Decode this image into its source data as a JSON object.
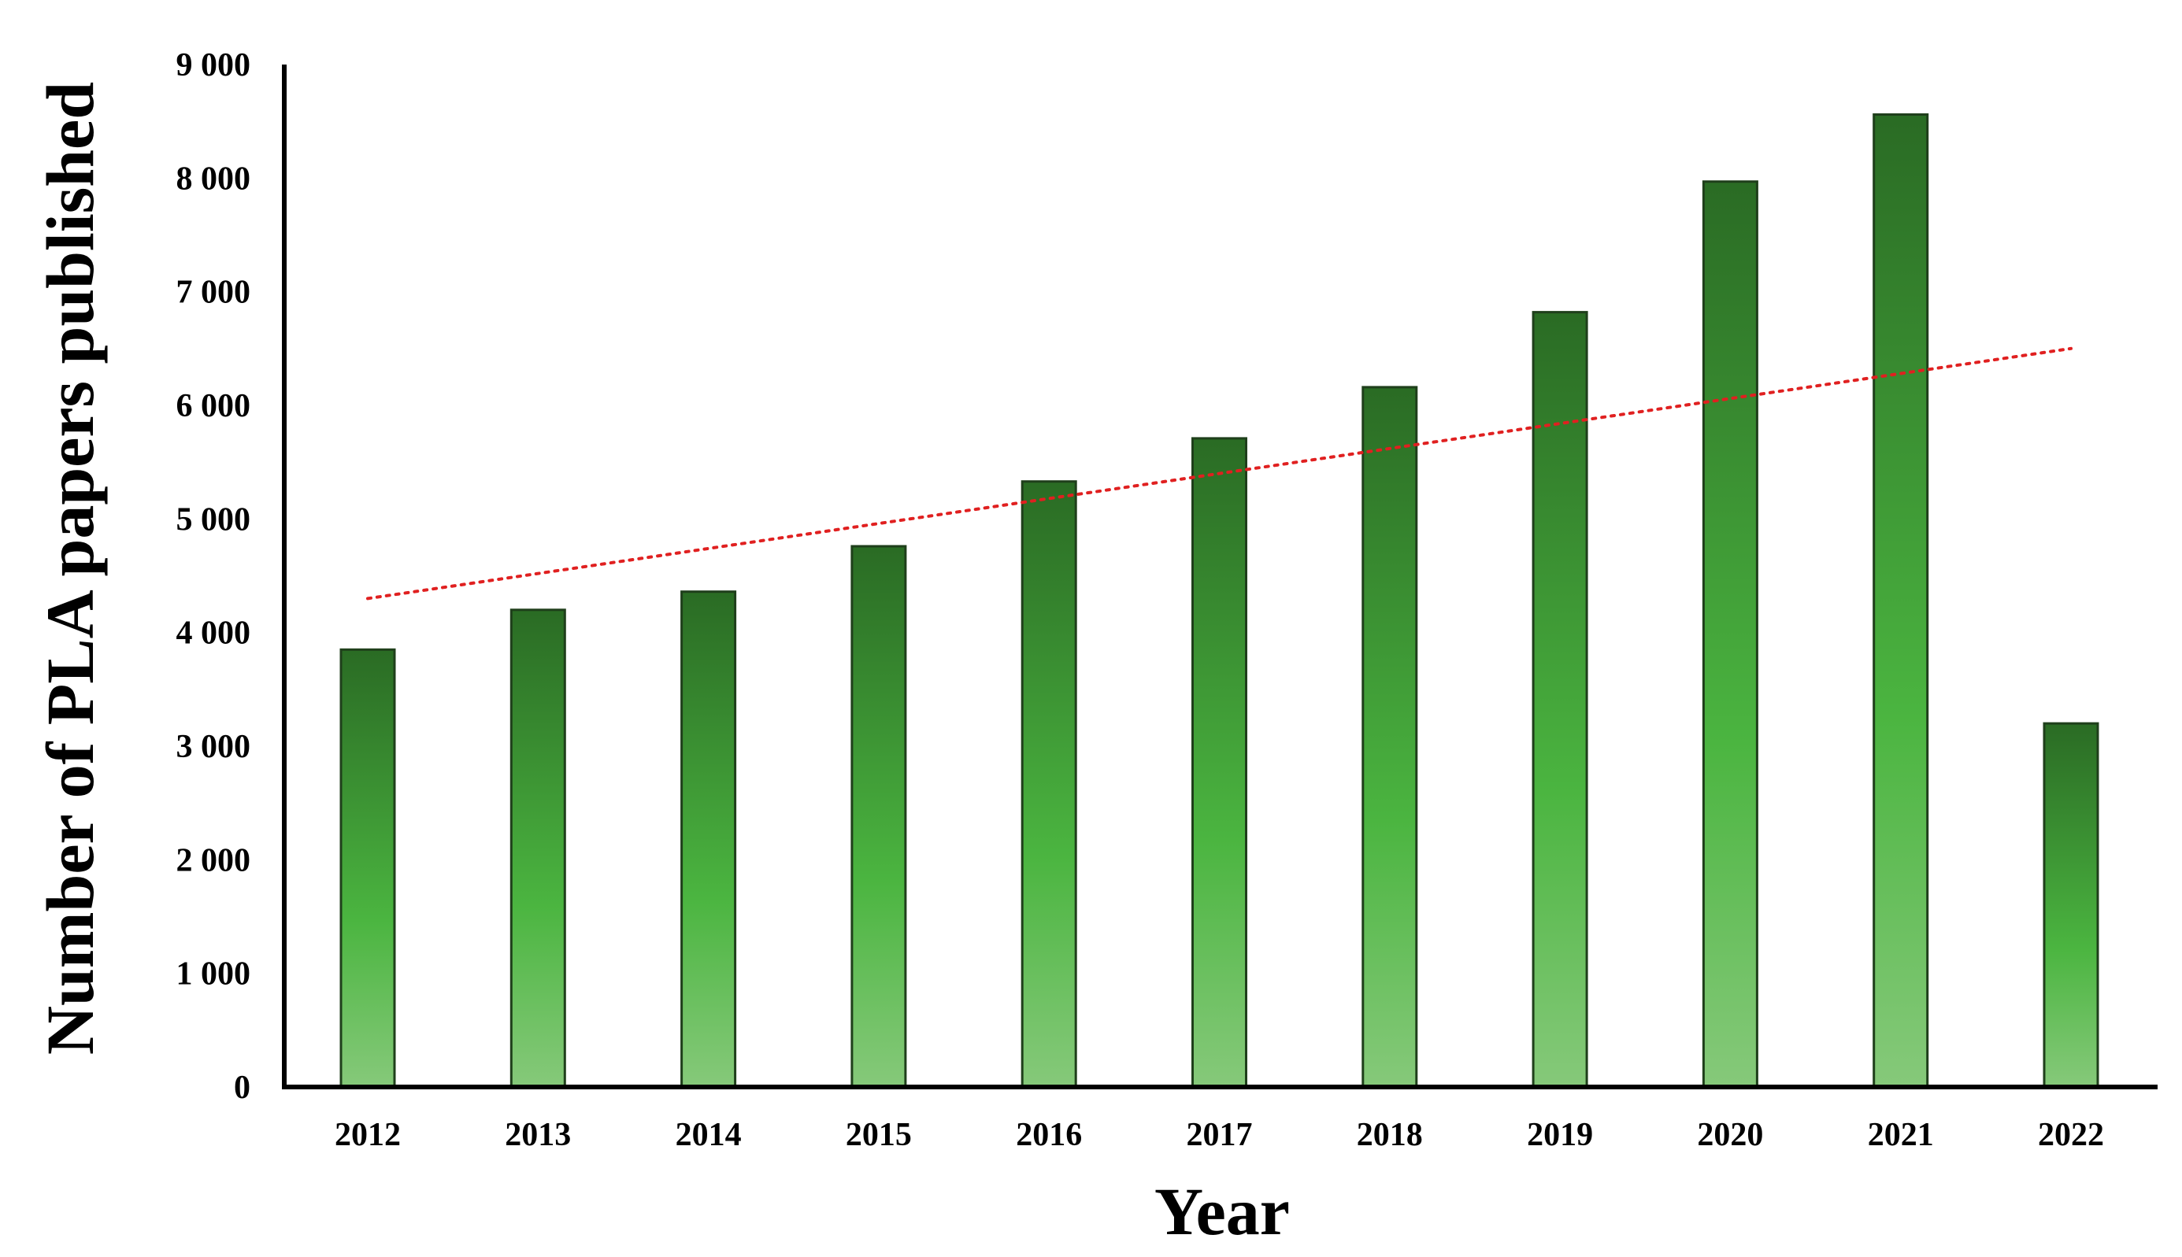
{
  "chart_data": {
    "type": "bar",
    "xlabel": "Year",
    "ylabel": "Number of PLA papers published",
    "categories": [
      "2012",
      "2013",
      "2014",
      "2015",
      "2016",
      "2017",
      "2018",
      "2019",
      "2020",
      "2021",
      "2022"
    ],
    "values": [
      3850,
      4200,
      4360,
      4760,
      5330,
      5710,
      6160,
      6820,
      7970,
      8560,
      3200
    ],
    "ylim": [
      0,
      9000
    ],
    "y_ticks": [
      0,
      1000,
      2000,
      3000,
      4000,
      5000,
      6000,
      7000,
      8000,
      9000
    ],
    "y_tick_labels": [
      "0",
      "1 000",
      "2 000",
      "3 000",
      "4 000",
      "5 000",
      "6 000",
      "7 000",
      "8 000",
      "9 000"
    ],
    "trendline": {
      "type": "linear",
      "start": 4300,
      "end": 6500
    },
    "grid": false,
    "legend": "none",
    "colors": {
      "bar_top": "#2a6b24",
      "bar_mid": "#4bb540",
      "bar_bottom": "#86c97a",
      "bar_stroke": "#1f3f1b",
      "trendline": "#e02020",
      "axis": "#000000"
    }
  }
}
